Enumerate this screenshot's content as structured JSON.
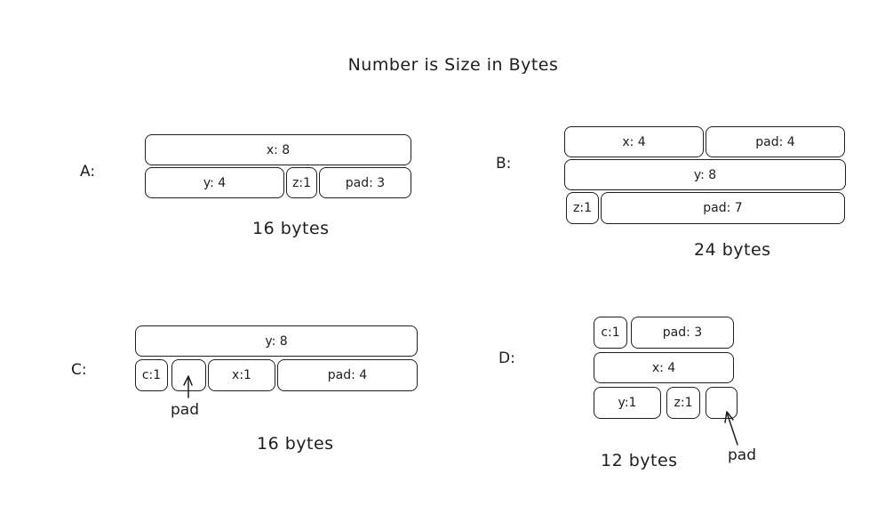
{
  "title": "Number is Size in Bytes",
  "structs": {
    "A": {
      "label": "A:",
      "rows": [
        [
          "x: 8"
        ],
        [
          "y: 4",
          "z:1",
          "pad: 3"
        ]
      ],
      "total": "16 bytes"
    },
    "B": {
      "label": "B:",
      "rows": [
        [
          "x: 4",
          "pad: 4"
        ],
        [
          "y: 8"
        ],
        [
          "z:1",
          "pad: 7"
        ]
      ],
      "total": "24 bytes"
    },
    "C": {
      "label": "C:",
      "rows": [
        [
          "y: 8"
        ],
        [
          "c:1",
          "",
          "x:1",
          "pad: 4"
        ]
      ],
      "total": "16 bytes",
      "note": "pad"
    },
    "D": {
      "label": "D:",
      "rows": [
        [
          "c:1",
          "pad: 3"
        ],
        [
          "x: 4"
        ],
        [
          "y:1",
          "z:1",
          ""
        ]
      ],
      "total": "12 bytes",
      "note": "pad"
    }
  }
}
